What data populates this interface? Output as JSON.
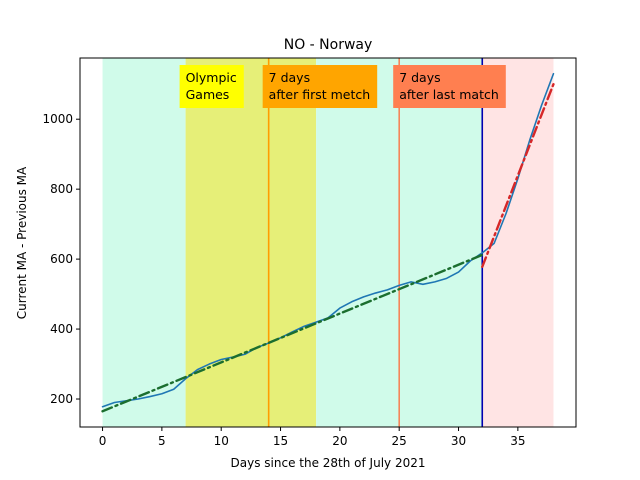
{
  "chart_data": {
    "type": "line",
    "title": "NO - Norway",
    "xlabel": "Days since the 28th of July 2021",
    "ylabel": "Current MA - Previous MA",
    "xlim": [
      -1.9,
      39.9
    ],
    "ylim": [
      120,
      1175
    ],
    "xticks": [
      0,
      5,
      10,
      15,
      20,
      25,
      30,
      35
    ],
    "yticks": [
      200,
      400,
      600,
      800,
      1000
    ],
    "grid": false,
    "legend": null,
    "spans": [
      {
        "x0": 0,
        "x1": 7,
        "color": "#d0fbea"
      },
      {
        "x0": 7,
        "x1": 18,
        "color": "#e6ef78"
      },
      {
        "x0": 18,
        "x1": 32,
        "color": "#d0fbea"
      },
      {
        "x0": 32,
        "x1": 38,
        "color": "#ffe4e4"
      }
    ],
    "vlines": [
      {
        "x": 14,
        "color": "#ff9d00"
      },
      {
        "x": 25,
        "color": "#f5855a"
      },
      {
        "x": 32,
        "color": "#0000b0"
      }
    ],
    "annotations": [
      {
        "text": [
          "Olympic",
          "Games"
        ],
        "x": 7,
        "bg": "#ffff00"
      },
      {
        "text": [
          "7 days",
          "after first metch"
        ],
        "x": 14,
        "bg": "#ffa500"
      },
      {
        "text": [
          "7 days",
          "after last match"
        ],
        "x": 25,
        "bg": "#ff7f50"
      }
    ],
    "series": [
      {
        "kind": "data",
        "color": "#1f77b4",
        "x": [
          0,
          1,
          2,
          3,
          4,
          5,
          6,
          7,
          8,
          9,
          10,
          11,
          12,
          13,
          14,
          15,
          16,
          17,
          18,
          19,
          20,
          21,
          22,
          23,
          24,
          25,
          26,
          27,
          28,
          29,
          30,
          31,
          32,
          33,
          34,
          35,
          36,
          37,
          38
        ],
        "values": [
          178,
          190,
          195,
          200,
          207,
          215,
          228,
          258,
          284,
          300,
          313,
          320,
          328,
          347,
          360,
          375,
          392,
          408,
          420,
          432,
          460,
          478,
          492,
          503,
          512,
          525,
          535,
          528,
          535,
          545,
          563,
          595,
          618,
          645,
          730,
          830,
          940,
          1040,
          1130
        ]
      },
      {
        "kind": "fit",
        "color": "#1b6e2f",
        "x": [
          0,
          32
        ],
        "values": [
          165,
          612
        ]
      },
      {
        "kind": "fit",
        "color": "#d62728",
        "x": [
          32,
          38
        ],
        "values": [
          578,
          1100
        ]
      }
    ]
  }
}
